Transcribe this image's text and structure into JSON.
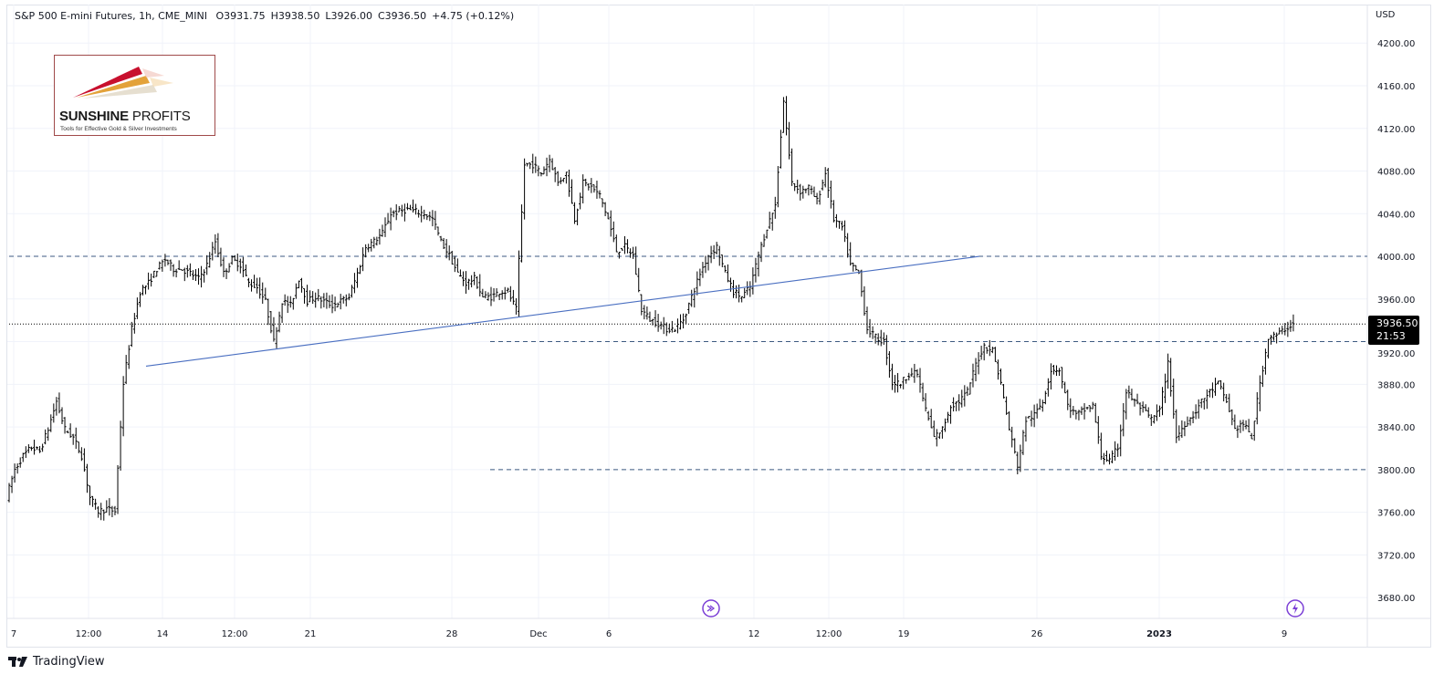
{
  "legend": {
    "symbol": "S&P 500 E-mini Futures, 1h, CME_MINI",
    "open": "O3931.75",
    "high": "H3938.50",
    "low": "L3926.00",
    "close": "C3936.50",
    "change": "+4.75 (+0.12%)"
  },
  "logo": {
    "name_bold": "SUNSHINE",
    "name_rest": "PROFITS",
    "tagline": "Tools for Effective Gold & Silver Investments"
  },
  "currency": "USD",
  "last_price": {
    "value": "3936.50",
    "countdown": "21:53"
  },
  "footer": {
    "brand": "TradingView"
  },
  "colors": {
    "bars": "#000000",
    "trendline": "#4a6fc1",
    "levels": "#3d5a80",
    "grid": "#f0f3fa",
    "event_icon": "#7b3fd6"
  },
  "chart_data": {
    "type": "ohlc-bar",
    "title": "S&P 500 E-mini Futures, 1h, CME_MINI",
    "ylim": [
      3650,
      4215
    ],
    "y_ticks": [
      "4200.00",
      "4160.00",
      "4120.00",
      "4080.00",
      "4040.00",
      "4000.00",
      "3960.00",
      "3920.00",
      "3880.00",
      "3840.00",
      "3800.00",
      "3760.00",
      "3720.00",
      "3680.00"
    ],
    "x_ticks": [
      "7",
      "12:00",
      "14",
      "12:00",
      "21",
      "28",
      "Dec",
      "6",
      "12",
      "12:00",
      "19",
      "26",
      "2023",
      "9"
    ],
    "grid": true,
    "closes": [
      3774,
      3800,
      3813,
      3821,
      3817,
      3838,
      3864,
      3838,
      3830,
      3813,
      3774,
      3761,
      3763,
      3761,
      3881,
      3932,
      3967,
      3975,
      3988,
      3997,
      3988,
      3988,
      3984,
      3979,
      3992,
      4014,
      3984,
      3997,
      3992,
      3975,
      3971,
      3958,
      3920,
      3958,
      3954,
      3979,
      3958,
      3962,
      3958,
      3954,
      3958,
      3962,
      3984,
      4009,
      4014,
      4022,
      4040,
      4042,
      4044,
      4042,
      4040,
      4035,
      4014,
      4001,
      3984,
      3975,
      3979,
      3962,
      3962,
      3967,
      3967,
      3950,
      4086,
      4086,
      4078,
      4091,
      4069,
      4078,
      4035,
      4069,
      4065,
      4057,
      4035,
      4005,
      4009,
      4001,
      3950,
      3941,
      3937,
      3932,
      3932,
      3941,
      3962,
      3984,
      4001,
      4009,
      3984,
      3967,
      3962,
      3971,
      4001,
      4027,
      4048,
      4146,
      4069,
      4061,
      4065,
      4052,
      4078,
      4035,
      4027,
      3992,
      3984,
      3932,
      3924,
      3920,
      3881,
      3881,
      3890,
      3890,
      3856,
      3830,
      3838,
      3860,
      3864,
      3873,
      3899,
      3916,
      3912,
      3881,
      3838,
      3804,
      3847,
      3851,
      3864,
      3894,
      3894,
      3860,
      3851,
      3856,
      3860,
      3813,
      3808,
      3821,
      3873,
      3864,
      3856,
      3847,
      3856,
      3899,
      3830,
      3843,
      3851,
      3864,
      3873,
      3881,
      3864,
      3838,
      3843,
      3830,
      3881,
      3924,
      3926,
      3932,
      3936.5
    ],
    "horizontal_levels": [
      {
        "price": 4000,
        "style": "dashed"
      },
      {
        "price": 3920,
        "style": "dashed"
      },
      {
        "price": 3800,
        "style": "dashed"
      },
      {
        "price": 3936.5,
        "style": "dotted"
      }
    ],
    "trendline": {
      "start_price": 3897,
      "end_price": 4000
    },
    "events": [
      {
        "icon": "dividend-arrow-icon"
      },
      {
        "icon": "lightning-icon"
      }
    ]
  }
}
